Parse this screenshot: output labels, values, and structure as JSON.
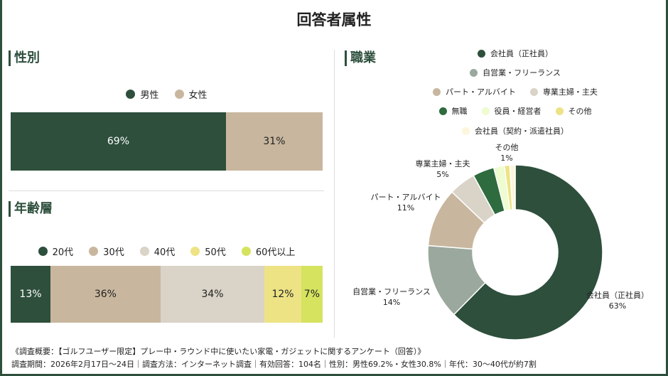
{
  "title": "回答者属性",
  "gender": {
    "heading": "性別",
    "legend": [
      "男性",
      "女性"
    ],
    "values": [
      69,
      31
    ],
    "labels": [
      "69%",
      "31%"
    ],
    "colors": [
      "#2d4f3c",
      "#c8b79e"
    ],
    "text_colors": [
      "#ffffff",
      "#222222"
    ]
  },
  "age": {
    "heading": "年齢層",
    "legend": [
      "20代",
      "30代",
      "40代",
      "50代",
      "60代以上"
    ],
    "values": [
      13,
      36,
      34,
      12,
      7
    ],
    "labels": [
      "13%",
      "36%",
      "34%",
      "12%",
      "7%"
    ],
    "colors": [
      "#2d4f3c",
      "#c8b79e",
      "#d9d3c8",
      "#ede385",
      "#d5e35f"
    ],
    "text_colors": [
      "#ffffff",
      "#222222",
      "#222222",
      "#222222",
      "#222222"
    ]
  },
  "occupation": {
    "heading": "職業",
    "chart_data": {
      "type": "pie",
      "donut": true,
      "categories": [
        "会社員（正社員）",
        "自営業・フリーランス",
        "パート・アルバイト",
        "専業主婦・主夫",
        "無職",
        "役員・経営者",
        "その他",
        "会社員（契約・派遣社員）"
      ],
      "values": [
        63,
        14,
        11,
        5,
        4,
        2,
        1,
        1
      ],
      "colors": [
        "#2d4f3c",
        "#9aa89d",
        "#c8b79e",
        "#d9d3c8",
        "#2e6b3e",
        "#eefcd0",
        "#ede385",
        "#fcf6dc"
      ],
      "data_labels": [
        {
          "name": "会社員（正社員）",
          "pct": "63%"
        },
        {
          "name": "自営業・フリーランス",
          "pct": "14%"
        },
        {
          "name": "パート・アルバイト",
          "pct": "11%"
        },
        {
          "name": "専業主婦・主夫",
          "pct": "5%"
        },
        {
          "name": "その他",
          "pct": "1%"
        }
      ],
      "legend_position": "top"
    }
  },
  "footer": {
    "line1": "《調査概要：【ゴルフユーザー限定】プレー中・ラウンド中に使いたい家電・ガジェットに関するアンケート（回答）》",
    "line2": "調査期間：2026年2月17日〜24日｜調査方法：インターネット調査｜有効回答：104名｜性別：男性69.2%・女性30.8%｜年代：30〜40代が約7割"
  }
}
